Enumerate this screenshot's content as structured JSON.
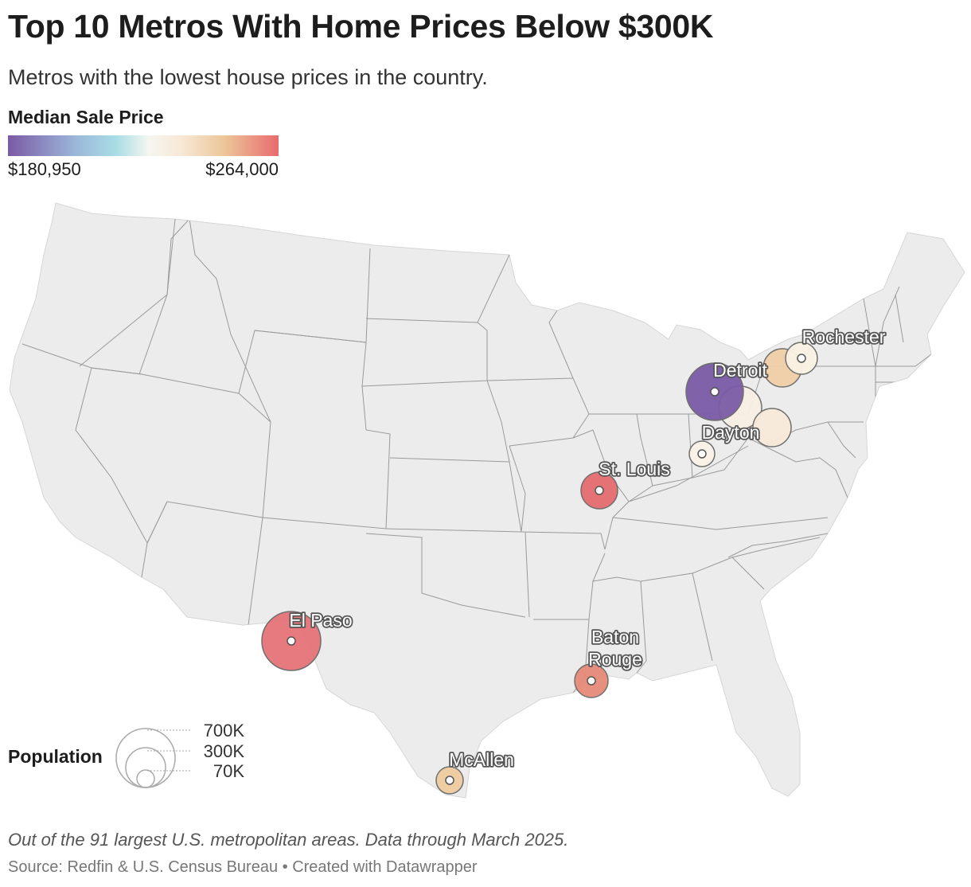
{
  "title": "Top 10 Metros With Home Prices Below $300K",
  "subtitle": "Metros with the lowest house prices in the country.",
  "color_legend": {
    "title": "Median Sale Price",
    "min_label": "$180,950",
    "max_label": "$264,000",
    "min_value": 180950,
    "max_value": 264000
  },
  "size_legend": {
    "title": "Population",
    "items": [
      {
        "label": "700K",
        "value": 700000
      },
      {
        "label": "300K",
        "value": 300000
      },
      {
        "label": "70K",
        "value": 70000
      }
    ]
  },
  "chart_data": {
    "type": "bubble-map",
    "region": "Contiguous United States",
    "metric": "Median Sale Price",
    "size_metric": "Population",
    "labeled_metros": [
      {
        "name": "Rochester",
        "lon": -77.61,
        "lat": 43.16
      },
      {
        "name": "Detroit",
        "lon": -83.05,
        "lat": 42.33
      },
      {
        "name": "Dayton",
        "lon": -84.19,
        "lat": 39.76
      },
      {
        "name": "St. Louis",
        "lon": -90.2,
        "lat": 38.63
      },
      {
        "name": "El Paso",
        "lon": -106.49,
        "lat": 31.76
      },
      {
        "name": "Baton Rouge",
        "lon": -91.15,
        "lat": 30.45
      },
      {
        "name": "McAllen",
        "lon": -98.23,
        "lat": 26.2
      }
    ],
    "unlabeled_bubbles": [
      {
        "lon": -78.88,
        "lat": 42.89
      },
      {
        "lon": -81.69,
        "lat": 41.5
      },
      {
        "lon": -79.99,
        "lat": 40.44
      }
    ]
  },
  "notes": {
    "note": "Out of the 91 largest U.S. metropolitan areas. Data through March 2025.",
    "source": "Source: Redfin & U.S. Census Bureau",
    "separator": "•",
    "credit": "Created with Datawrapper"
  }
}
